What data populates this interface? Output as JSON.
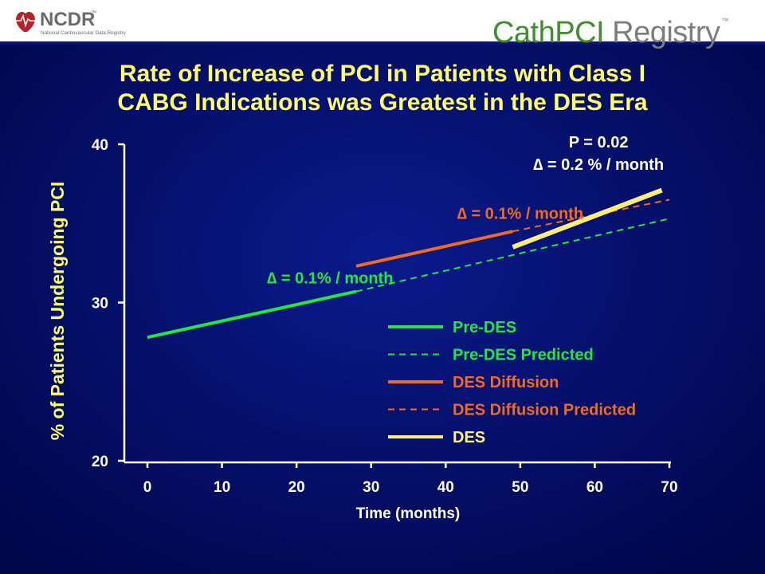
{
  "header": {
    "ncdr_logo": {
      "name": "NCDR",
      "tm": "™",
      "tagline": "National Cardiovascular Data Registry"
    },
    "product_logo": {
      "part1": "CathPCI",
      "part2": " Registry",
      "tm": "™"
    }
  },
  "slide": {
    "title_lines": [
      "Rate of Increase of PCI in Patients with Class I",
      "CABG Indications was Greatest in the DES Era"
    ]
  },
  "colors": {
    "background": "#000b6e",
    "title": "#ffff66",
    "pre_des": "#22e83a",
    "des_diffusion": "#f26b1d",
    "des": "#ffee77",
    "axis": "#ffffff"
  },
  "chart_data": {
    "type": "line",
    "title": "",
    "xlabel": "Time (months)",
    "ylabel": "% of Patients Undergoing PCI",
    "xlim": [
      0,
      70
    ],
    "ylim": [
      20,
      40
    ],
    "x_ticks": [
      0,
      10,
      20,
      30,
      40,
      50,
      60,
      70
    ],
    "y_ticks": [
      20,
      30,
      40
    ],
    "grid": false,
    "legend_position": "bottom-right",
    "series": [
      {
        "name": "Pre-DES",
        "style": "solid",
        "color": "#22e83a",
        "x": [
          0,
          28
        ],
        "y": [
          27.8,
          30.7
        ]
      },
      {
        "name": "Pre-DES Predicted",
        "style": "dashed",
        "color": "#22e83a",
        "x": [
          28,
          70
        ],
        "y": [
          30.7,
          35.3
        ]
      },
      {
        "name": "DES Diffusion",
        "style": "solid",
        "color": "#f26b1d",
        "x": [
          28,
          49
        ],
        "y": [
          32.3,
          34.5
        ]
      },
      {
        "name": "DES Diffusion Predicted",
        "style": "dashed",
        "color": "#f26b1d",
        "x": [
          49,
          70
        ],
        "y": [
          34.5,
          36.5
        ]
      },
      {
        "name": "DES",
        "style": "solid",
        "color": "#ffee77",
        "x": [
          49,
          69
        ],
        "y": [
          33.5,
          37.1
        ]
      }
    ],
    "annotations": [
      {
        "text": "∆ = 0.1% / month",
        "color": "#22e83a",
        "x": 24.5,
        "y": 31.2
      },
      {
        "text": "∆ = 0.1% / month",
        "color": "#f26b1d",
        "x": 50,
        "y": 35.3
      },
      {
        "text": "P = 0.02",
        "color": "#ffffff",
        "x": 60.5,
        "y": 39.8
      },
      {
        "text": "∆ = 0.2 % / month",
        "color": "#ffffff",
        "x": 60.5,
        "y": 38.4
      }
    ]
  }
}
